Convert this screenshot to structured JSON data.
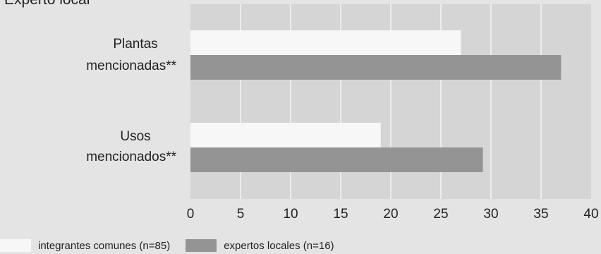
{
  "chart_data": {
    "type": "bar",
    "orientation": "horizontal",
    "title": "Experto local",
    "categories": [
      {
        "lines": [
          "Plantas",
          "mencionadas**"
        ]
      },
      {
        "lines": [
          "Usos",
          "mencionados**"
        ]
      }
    ],
    "series": [
      {
        "name": "integrantes comunes (n=85)",
        "color": "#f7f7f7",
        "values": [
          27,
          19
        ]
      },
      {
        "name": "expertos locales (n=16)",
        "color": "#949494",
        "values": [
          37,
          29.2
        ]
      }
    ],
    "xlim": [
      0,
      40
    ],
    "xticks": [
      0,
      5,
      10,
      15,
      20,
      25,
      30,
      35,
      40
    ],
    "grid": true,
    "legend": "bottom-left",
    "colors": {
      "plot_bg": "#d5d5d5",
      "page_bg": "#e4e4e4",
      "grid": "#ececec"
    }
  }
}
